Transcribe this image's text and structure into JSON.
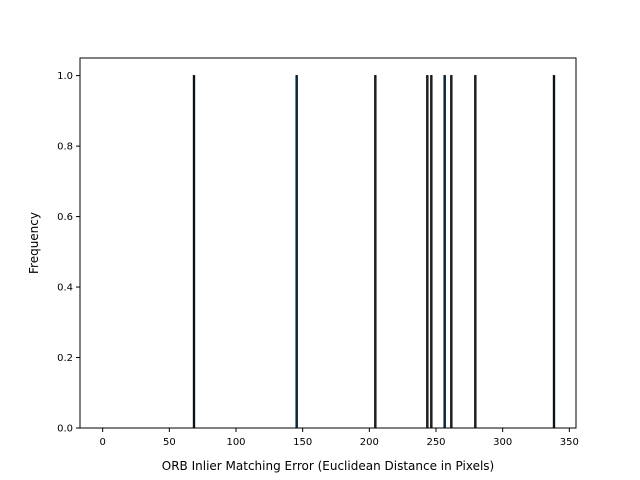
{
  "chart_data": {
    "type": "bar",
    "title": "",
    "xlabel": "ORB Inlier Matching Error (Euclidean Distance in Pixels)",
    "ylabel": "Frequency",
    "xlim": [
      -17,
      355
    ],
    "ylim": [
      0,
      1.05
    ],
    "x_ticks": [
      0,
      50,
      100,
      150,
      200,
      250,
      300,
      350
    ],
    "y_ticks": [
      0.0,
      0.2,
      0.4,
      0.6,
      0.8,
      1.0
    ],
    "x_tick_labels": [
      "0",
      "50",
      "100",
      "150",
      "200",
      "250",
      "300",
      "350"
    ],
    "y_tick_labels": [
      "0.0",
      "0.2",
      "0.4",
      "0.6",
      "0.8",
      "1.0"
    ],
    "grid": false,
    "legend": "none",
    "bin_width": 1,
    "bar_color": "#1f77b4",
    "edge_color": "#000000",
    "bars": [
      {
        "x": 68,
        "frequency": 1
      },
      {
        "x": 145,
        "frequency": 1
      },
      {
        "x": 204,
        "frequency": 1
      },
      {
        "x": 243,
        "frequency": 1
      },
      {
        "x": 246,
        "frequency": 1
      },
      {
        "x": 256,
        "frequency": 1
      },
      {
        "x": 261,
        "frequency": 1
      },
      {
        "x": 279,
        "frequency": 1
      },
      {
        "x": 338,
        "frequency": 1
      }
    ]
  }
}
